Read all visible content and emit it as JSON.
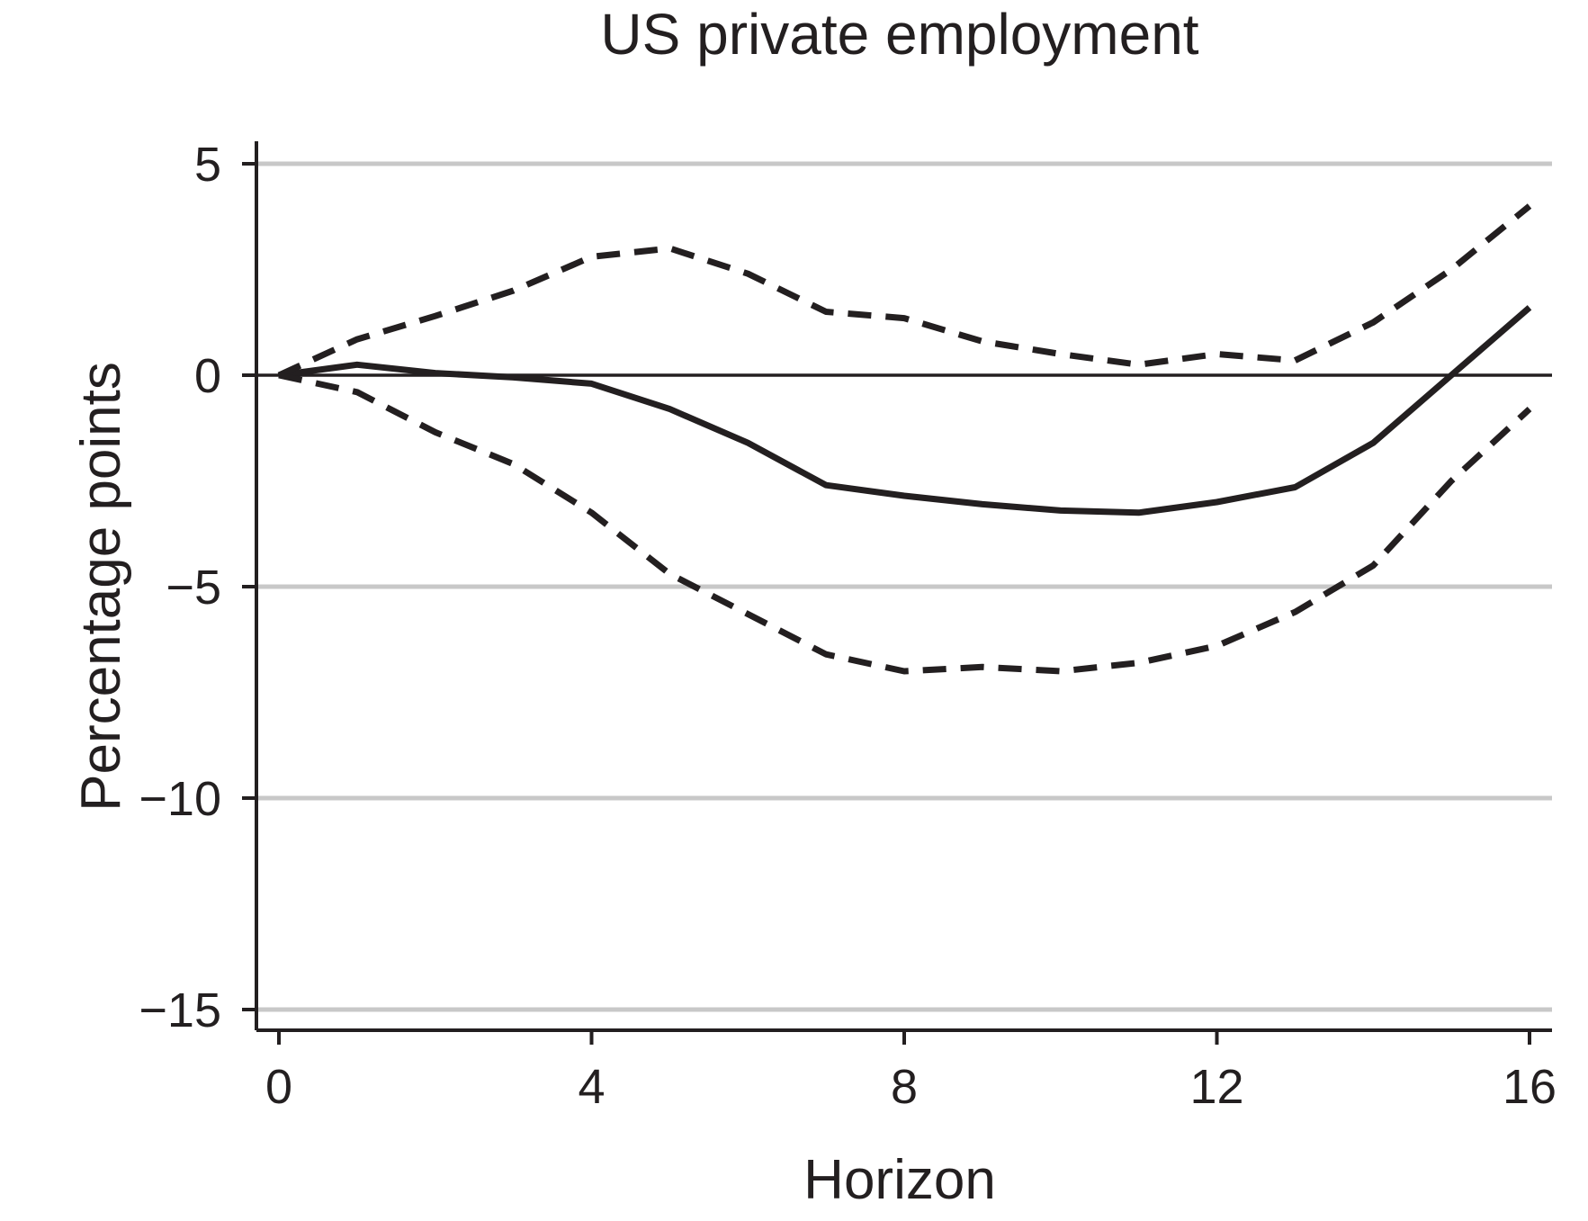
{
  "chart_data": {
    "type": "line",
    "title": "US private employment",
    "xlabel": "Horizon",
    "ylabel": "Percentage points",
    "xlim": [
      0,
      16
    ],
    "ylim": [
      -15,
      5
    ],
    "xticks": [
      0,
      4,
      8,
      12,
      16
    ],
    "yticks": [
      5,
      0,
      -5,
      -10,
      -15
    ],
    "ytick_labels": [
      "5",
      "0",
      "−10",
      "−15"
    ],
    "ytick_labels_full": [
      "5",
      "0",
      "−5",
      "−10",
      "−15"
    ],
    "xtick_labels": [
      "0",
      "4",
      "8",
      "12",
      "16"
    ],
    "grid": true,
    "zero_line": true,
    "x": [
      0,
      1,
      2,
      3,
      4,
      5,
      6,
      7,
      8,
      9,
      10,
      11,
      12,
      13,
      14,
      15,
      16
    ],
    "series": [
      {
        "role": "point-estimate",
        "style": "solid",
        "values": [
          0,
          0.25,
          0.05,
          -0.05,
          -0.2,
          -0.8,
          -1.6,
          -2.6,
          -2.85,
          -3.05,
          -3.2,
          -3.25,
          -3.0,
          -2.65,
          -1.6,
          0.0,
          1.6
        ]
      },
      {
        "role": "upper-band",
        "style": "dashed",
        "values": [
          0,
          0.85,
          1.4,
          2.0,
          2.8,
          3.0,
          2.4,
          1.5,
          1.35,
          0.8,
          0.5,
          0.25,
          0.5,
          0.35,
          1.25,
          2.5,
          4.0
        ]
      },
      {
        "role": "lower-band",
        "style": "dashed",
        "values": [
          0,
          -0.4,
          -1.35,
          -2.1,
          -3.25,
          -4.7,
          -5.65,
          -6.6,
          -7.0,
          -6.9,
          -7.0,
          -6.8,
          -6.4,
          -5.6,
          -4.5,
          -2.5,
          -0.8
        ]
      }
    ],
    "colors": {
      "lines": "#231f20",
      "grid": "#c8c8c8",
      "axes": "#231f20"
    }
  }
}
